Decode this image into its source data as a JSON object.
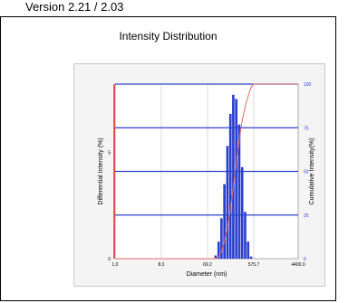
{
  "header": {
    "version": "Version 2.21 / 2.03"
  },
  "chart_data": {
    "type": "bar",
    "title": "Intensity Distribution",
    "xlabel": "Diameter (nm)",
    "ylabel": "Differential Intensity (%)",
    "y2label": "Cumulative Intensity(%)",
    "x_scale": "log",
    "xlim": [
      1.0,
      4400.0
    ],
    "x_ticks": [
      1.0,
      8.3,
      69.2,
      575.7,
      4400.0
    ],
    "x_tick_labels": [
      "1.0",
      "8.3",
      "69.2",
      "575.7",
      "4400.0"
    ],
    "ylim": [
      0,
      8.2
    ],
    "y_ticks": [
      0,
      5
    ],
    "y_tick_labels": [
      "0",
      "5"
    ],
    "y2lim": [
      0,
      100
    ],
    "y2_ticks": [
      0,
      25,
      50,
      75,
      100
    ],
    "y2_tick_labels": [
      "0",
      "25",
      "50",
      "75",
      "100"
    ],
    "grid": true,
    "colors": {
      "bars": "#2b3fcf",
      "cumulative": "#e06a6a",
      "frame_accent": "#e8392f"
    },
    "series": [
      {
        "type": "bar",
        "diameters": [
          100,
          115,
          131,
          150,
          172,
          197,
          225,
          258,
          295,
          338,
          387,
          443,
          507
        ],
        "values": [
          0.15,
          0.8,
          1.9,
          3.5,
          5.3,
          6.8,
          7.7,
          7.5,
          6.3,
          4.3,
          2.2,
          0.8,
          0.1
        ]
      },
      {
        "type": "line",
        "diameters": [
          1,
          95,
          115,
          131,
          150,
          172,
          197,
          225,
          258,
          295,
          338,
          387,
          443,
          507,
          560,
          1000,
          4400
        ],
        "values": [
          0,
          0,
          1,
          4,
          10,
          18,
          28,
          41,
          55,
          68,
          79,
          87,
          93,
          98,
          100,
          100,
          100
        ]
      }
    ]
  }
}
